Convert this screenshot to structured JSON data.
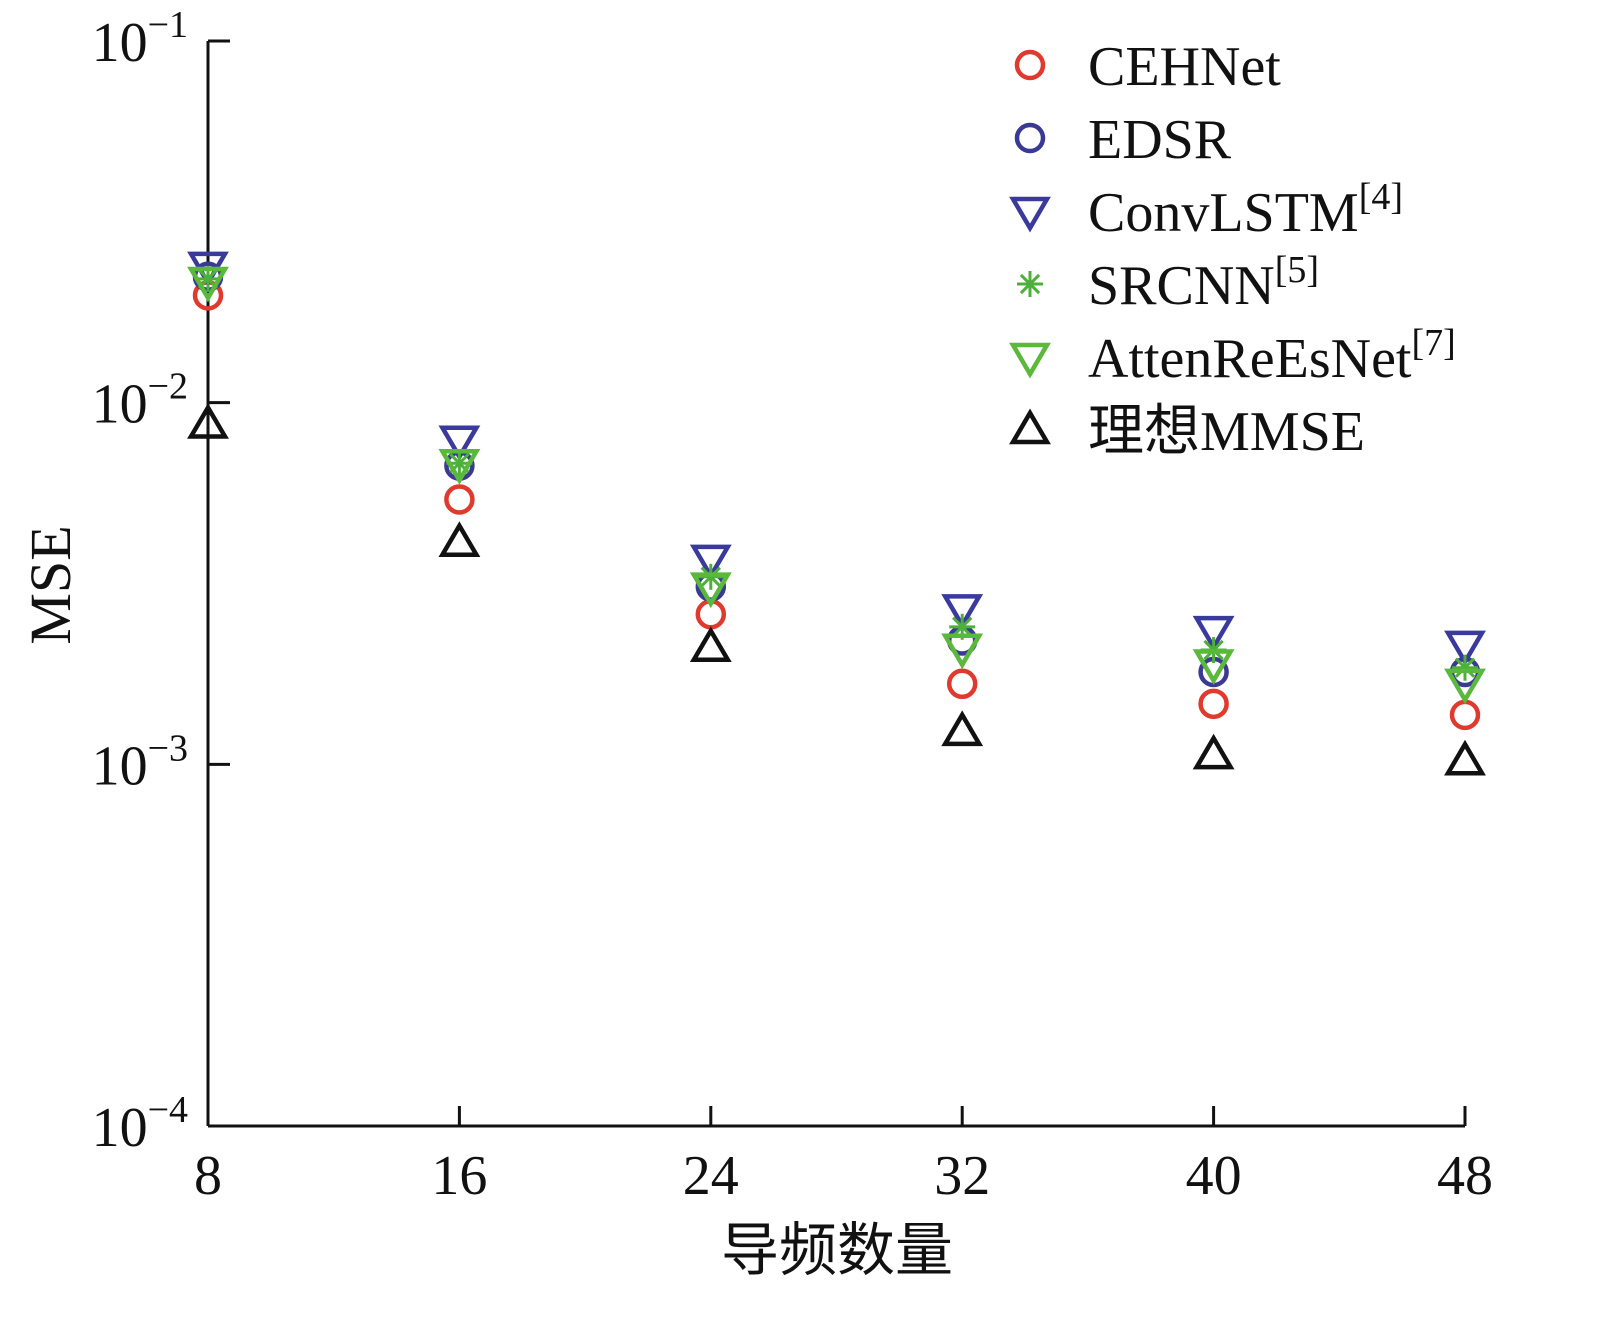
{
  "chart_data": {
    "type": "scatter",
    "title": "",
    "xlabel": "导频数量",
    "ylabel": "MSE",
    "yscale": "log",
    "ylim": [
      0.0001,
      0.1
    ],
    "xlim": [
      8,
      48
    ],
    "x": [
      8,
      16,
      24,
      32,
      40,
      48
    ],
    "xticks": [
      "8",
      "16",
      "24",
      "32",
      "40",
      "48"
    ],
    "yticks": [
      {
        "base": "10",
        "exp": "−4",
        "value": 0.0001
      },
      {
        "base": "10",
        "exp": "−3",
        "value": 0.001
      },
      {
        "base": "10",
        "exp": "−2",
        "value": 0.01
      },
      {
        "base": "10",
        "exp": "−1",
        "value": 0.1
      }
    ],
    "grid": false,
    "legend_position": "top-right",
    "series": [
      {
        "name": "CEHNet",
        "ref": "",
        "marker": "circle",
        "color": "#e03a2f",
        "values": [
          0.0198,
          0.0054,
          0.0026,
          0.00167,
          0.00147,
          0.00137
        ]
      },
      {
        "name": "EDSR",
        "ref": "",
        "marker": "circle",
        "color": "#3a3a94",
        "values": [
          0.0223,
          0.0067,
          0.0031,
          0.0022,
          0.0018,
          0.0018
        ]
      },
      {
        "name": "ConvLSTM",
        "ref": "[4]",
        "marker": "triangle-down",
        "color": "#3a3a9c",
        "values": [
          0.0239,
          0.0079,
          0.0037,
          0.0027,
          0.00235,
          0.00214
        ]
      },
      {
        "name": "SRCNN",
        "ref": "[5]",
        "marker": "asterisk",
        "color": "#4cb03a",
        "values": [
          0.022,
          0.0068,
          0.0033,
          0.0024,
          0.00207,
          0.00185
        ]
      },
      {
        "name": "AttenReEsNet",
        "ref": "[7]",
        "marker": "triangle-down",
        "color": "#5ab83a",
        "values": [
          0.0217,
          0.0068,
          0.0031,
          0.0021,
          0.0019,
          0.00168
        ]
      },
      {
        "name": "理想MMSE",
        "ref": "",
        "marker": "triangle-up",
        "color": "#111111",
        "values": [
          0.0087,
          0.0041,
          0.0021,
          0.00123,
          0.00106,
          0.00102
        ]
      }
    ]
  }
}
